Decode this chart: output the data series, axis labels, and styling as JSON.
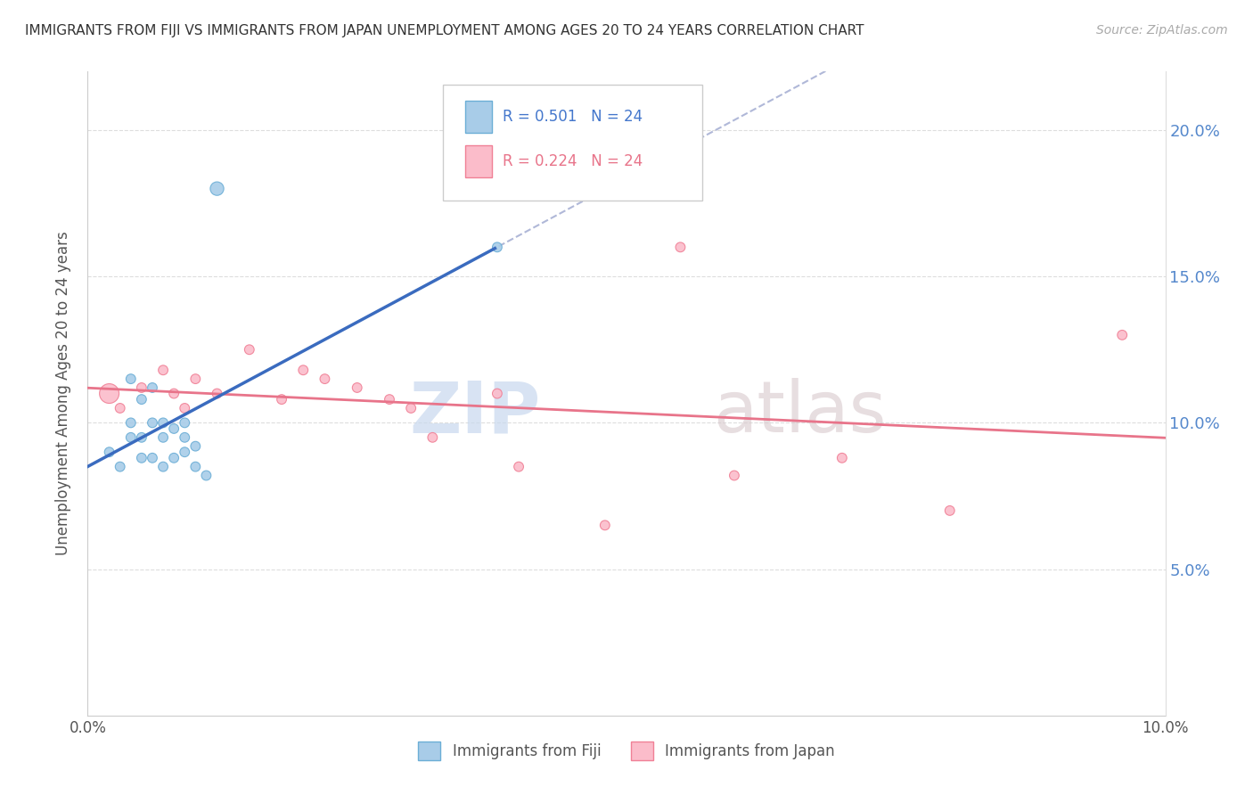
{
  "title": "IMMIGRANTS FROM FIJI VS IMMIGRANTS FROM JAPAN UNEMPLOYMENT AMONG AGES 20 TO 24 YEARS CORRELATION CHART",
  "source": "Source: ZipAtlas.com",
  "ylabel": "Unemployment Among Ages 20 to 24 years",
  "xlim": [
    0.0,
    0.1
  ],
  "ylim": [
    0.0,
    0.22
  ],
  "fiji_R": 0.501,
  "fiji_N": 24,
  "japan_R": 0.224,
  "japan_N": 24,
  "fiji_color": "#a8cce8",
  "fiji_edge": "#6baed6",
  "japan_color": "#fbbcca",
  "japan_edge": "#f08096",
  "fiji_line_color": "#3a6bbf",
  "japan_line_color": "#e8748a",
  "ref_line_color": "#b0b8d8",
  "background": "#ffffff",
  "grid_color": "#dddddd",
  "fiji_x": [
    0.002,
    0.003,
    0.004,
    0.004,
    0.004,
    0.005,
    0.005,
    0.005,
    0.006,
    0.006,
    0.006,
    0.007,
    0.007,
    0.007,
    0.008,
    0.008,
    0.009,
    0.009,
    0.009,
    0.01,
    0.01,
    0.011,
    0.012,
    0.038
  ],
  "fiji_y": [
    0.09,
    0.085,
    0.095,
    0.1,
    0.115,
    0.088,
    0.095,
    0.108,
    0.088,
    0.1,
    0.112,
    0.085,
    0.095,
    0.1,
    0.088,
    0.098,
    0.09,
    0.095,
    0.1,
    0.085,
    0.092,
    0.082,
    0.18,
    0.16
  ],
  "fiji_sizes": [
    60,
    60,
    60,
    60,
    60,
    60,
    60,
    60,
    60,
    60,
    60,
    60,
    60,
    60,
    60,
    60,
    60,
    60,
    60,
    60,
    60,
    60,
    120,
    60
  ],
  "japan_x": [
    0.002,
    0.003,
    0.005,
    0.007,
    0.008,
    0.009,
    0.01,
    0.012,
    0.015,
    0.018,
    0.02,
    0.022,
    0.025,
    0.028,
    0.03,
    0.032,
    0.038,
    0.04,
    0.048,
    0.055,
    0.06,
    0.07,
    0.08,
    0.096
  ],
  "japan_y": [
    0.11,
    0.105,
    0.112,
    0.118,
    0.11,
    0.105,
    0.115,
    0.11,
    0.125,
    0.108,
    0.118,
    0.115,
    0.112,
    0.108,
    0.105,
    0.095,
    0.11,
    0.085,
    0.065,
    0.16,
    0.082,
    0.088,
    0.07,
    0.13
  ],
  "japan_sizes": [
    250,
    60,
    60,
    60,
    60,
    60,
    60,
    60,
    60,
    60,
    60,
    60,
    60,
    60,
    60,
    60,
    60,
    60,
    60,
    60,
    60,
    60,
    60,
    60
  ]
}
